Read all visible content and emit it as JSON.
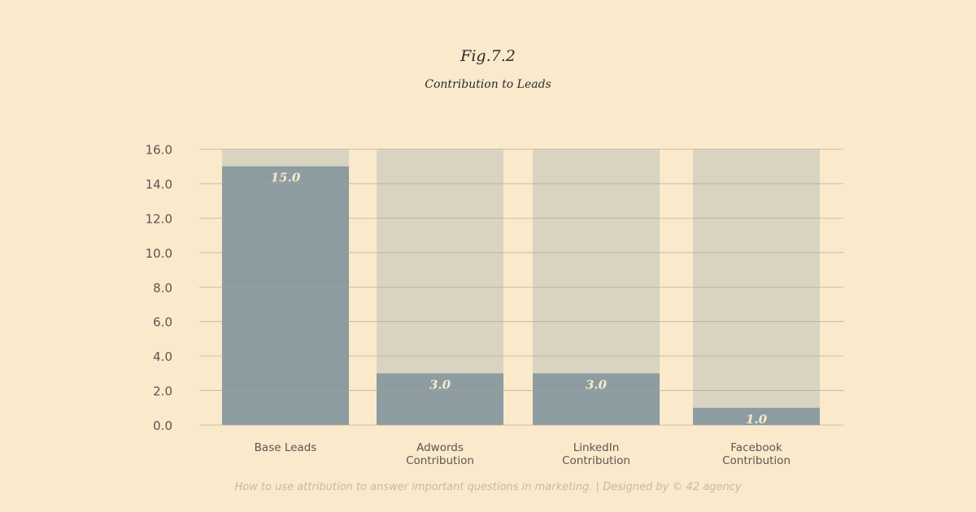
{
  "header": {
    "figure_label": "Fig.7.2",
    "subtitle": "Contribution to Leads"
  },
  "footer": {
    "text": "How to use attribution to answer important questions in marketing. | Designed by © 42 agency"
  },
  "colors": {
    "background": "#fae9cb",
    "bar_fill": "#8c9ca0",
    "bar_track": "#d8d4c1",
    "data_label": "#fae9cb",
    "gridline": "#a9a491",
    "axis_text": "#5c5650"
  },
  "chart_data": {
    "type": "bar",
    "title": "Contribution to Leads",
    "categories": [
      [
        "Base Leads"
      ],
      [
        "Adwords",
        "Contribution"
      ],
      [
        "LinkedIn",
        "Contribution"
      ],
      [
        "Facebook",
        "Contribution"
      ]
    ],
    "values": [
      15.0,
      3.0,
      3.0,
      1.0
    ],
    "data_labels": [
      "15.0",
      "3.0",
      "3.0",
      "1.0"
    ],
    "ylim": [
      0,
      16
    ],
    "yticks": [
      "0.0",
      "2.0",
      "4.0",
      "6.0",
      "8.0",
      "10.0",
      "12.0",
      "14.0",
      "16.0"
    ],
    "xlabel": "",
    "ylabel": "",
    "grid": true,
    "legend": "none"
  }
}
